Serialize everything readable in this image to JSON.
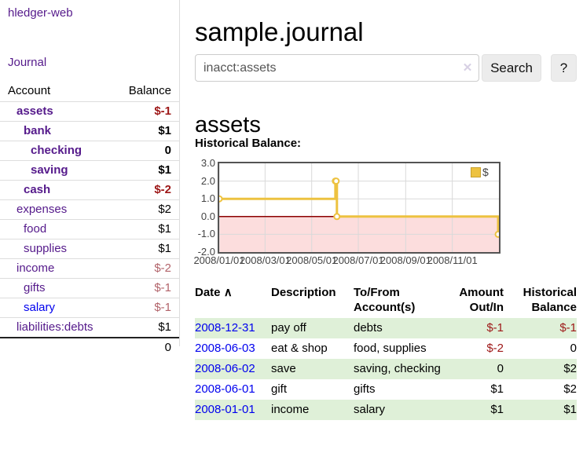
{
  "app_title": "hledger-web",
  "sidebar": {
    "journal_link": "Journal",
    "col_account": "Account",
    "col_balance": "Balance",
    "accounts": [
      {
        "name": "assets",
        "balance": "$-1"
      },
      {
        "name": "bank",
        "balance": "$1"
      },
      {
        "name": "checking",
        "balance": "0"
      },
      {
        "name": "saving",
        "balance": "$1"
      },
      {
        "name": "cash",
        "balance": "$-2"
      },
      {
        "name": "expenses",
        "balance": "$2"
      },
      {
        "name": "food",
        "balance": "$1"
      },
      {
        "name": "supplies",
        "balance": "$1"
      },
      {
        "name": "income",
        "balance": "$-2"
      },
      {
        "name": "gifts",
        "balance": "$-1"
      },
      {
        "name": "salary",
        "balance": "$-1"
      },
      {
        "name": "liabilities:debts",
        "balance": "$1"
      }
    ],
    "total": "0"
  },
  "main": {
    "title": "sample.journal",
    "search": {
      "value": "inacct:assets",
      "clear_icon": "✕",
      "button_label": "Search",
      "help_label": "?"
    },
    "account_heading": "assets",
    "section_label": "Historical Balance:"
  },
  "chart_data": {
    "type": "line",
    "title": "Historical Balance:",
    "step": true,
    "series": [
      {
        "name": "$",
        "color": "#EDC240",
        "points": [
          [
            "2008-01-01",
            1
          ],
          [
            "2008-06-01",
            2
          ],
          [
            "2008-06-02",
            2
          ],
          [
            "2008-06-03",
            0
          ],
          [
            "2008-12-31",
            -1
          ]
        ]
      }
    ],
    "x_range": [
      "2008-01-01",
      "2009-01-01"
    ],
    "x_ticks": [
      "2008/01/01",
      "2008/03/01",
      "2008/05/01",
      "2008/07/01",
      "2008/09/01",
      "2008/11/01"
    ],
    "y_ticks": [
      "3.0",
      "2.0",
      "1.0",
      "0.0",
      "-1.0",
      "-2.0"
    ],
    "ylim": [
      -2,
      3
    ],
    "grid": true,
    "legend_position": "top-right",
    "colors": {
      "grid": "#d9d9d9",
      "border": "#545454",
      "negative_region": "#fcdddd",
      "zero_line": "#8b0000"
    }
  },
  "register": {
    "columns": [
      "Date",
      "Description",
      "To/From Account(s)",
      "Amount Out/In",
      "Historical Balance"
    ],
    "sort_icon": "∧",
    "rows": [
      {
        "date": "2008-12-31",
        "description": "pay off",
        "accounts": "debts",
        "amount": "$-1",
        "balance": "$-1"
      },
      {
        "date": "2008-06-03",
        "description": "eat & shop",
        "accounts": "food, supplies",
        "amount": "$-2",
        "balance": "0"
      },
      {
        "date": "2008-06-02",
        "description": "save",
        "accounts": "saving, checking",
        "amount": "0",
        "balance": "$2"
      },
      {
        "date": "2008-06-01",
        "description": "gift",
        "accounts": "gifts",
        "amount": "$1",
        "balance": "$2"
      },
      {
        "date": "2008-01-01",
        "description": "income",
        "accounts": "salary",
        "amount": "$1",
        "balance": "$1"
      }
    ]
  }
}
